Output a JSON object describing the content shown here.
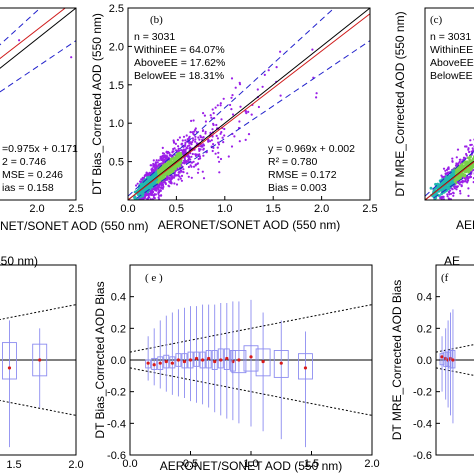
{
  "chart_data": [
    {
      "panel": "a",
      "type": "scatter",
      "xlabel": "AERONET/SONET AOD (550 nm)",
      "x_tick_labels": [
        "2.0",
        "2.5"
      ],
      "stats": [
        "=0.975x + 0.171",
        "2 = 0.746",
        "MSE = 0.246",
        "ias = 0.158"
      ],
      "xlim": [
        0,
        2.5
      ],
      "ylim": [
        0,
        2.5
      ]
    },
    {
      "panel": "b",
      "type": "scatter",
      "panel_label": "(b)",
      "ylabel": "DT Bias_Corrected  AOD (550 nm)",
      "xlabel": "AERONET/SONET  AOD (550 nm)",
      "x_tick_labels": [
        "0.0",
        "0.5",
        "1.0",
        "1.5",
        "2.0",
        "2.5"
      ],
      "y_tick_labels": [
        "0.5",
        "1.0",
        "1.5",
        "2.0",
        "2.5"
      ],
      "info": [
        "n = 3031",
        "WithinEE = 64.07%",
        "AboveEE = 17.62%",
        "BelowEE = 18.31%"
      ],
      "stats": [
        "y = 0.969x + 0.002",
        "R² = 0.780",
        "RMSE = 0.172",
        "Bias = 0.003"
      ],
      "fit": {
        "slope": 0.969,
        "intercept": 0.002
      },
      "xlim": [
        0,
        2.5
      ],
      "ylim": [
        0,
        2.5
      ],
      "colors": {
        "points": "#9b1fe8",
        "fit": "#1a1aa8",
        "ee": "#2222cc",
        "dense": "#22b8b0"
      }
    },
    {
      "panel": "c",
      "type": "scatter",
      "panel_label": "(c)",
      "ylabel": "DT MRE_Corrected AOD (550 nm)",
      "xlabel": "AER",
      "info": [
        "n = 3031",
        "WithinEE",
        "AboveEE",
        "BelowEE"
      ],
      "xlim": [
        0,
        2.5
      ],
      "ylim": [
        0,
        2.5
      ]
    },
    {
      "panel": "d",
      "type": "box",
      "xlabel": "550 nm)",
      "x_tick_labels": [
        "1.5",
        "2.0"
      ],
      "xlim": [
        0,
        2.0
      ],
      "ylim": [
        -0.6,
        0.6
      ]
    },
    {
      "panel": "e",
      "type": "box",
      "panel_label": "( e )",
      "ylabel": "DT Bias_Corrected AOD Bias",
      "xlabel": "AERONET/SONET AOD (550 nm)",
      "x_tick_labels": [
        "0.0",
        "0.5",
        "1.0",
        "1.5",
        "2.0"
      ],
      "y_tick_labels": [
        "-0.6",
        "-0.4",
        "-0.2",
        "0.0",
        "0.2",
        "0.4"
      ],
      "xlim": [
        0,
        2.0
      ],
      "ylim": [
        -0.6,
        0.6
      ],
      "ee_envelope": {
        "base": 0.05,
        "slope": 0.15
      },
      "bins_x": [
        0.15,
        0.2,
        0.25,
        0.3,
        0.35,
        0.4,
        0.45,
        0.5,
        0.55,
        0.6,
        0.65,
        0.7,
        0.75,
        0.8,
        0.85,
        0.9,
        1.0,
        1.1,
        1.25,
        1.45
      ],
      "bins_mean": [
        -0.02,
        -0.03,
        -0.02,
        -0.01,
        -0.02,
        0.0,
        -0.01,
        0.0,
        0.01,
        0.0,
        0.01,
        -0.01,
        0.0,
        0.01,
        -0.01,
        0.0,
        0.02,
        -0.01,
        -0.02,
        -0.05
      ],
      "bins_q1": [
        -0.05,
        -0.06,
        -0.06,
        -0.05,
        -0.05,
        -0.04,
        -0.05,
        -0.05,
        -0.04,
        -0.05,
        -0.05,
        -0.06,
        -0.05,
        -0.06,
        -0.07,
        -0.08,
        -0.07,
        -0.1,
        -0.11,
        -0.12
      ],
      "bins_q3": [
        0.0,
        0.01,
        0.02,
        0.03,
        0.02,
        0.04,
        0.04,
        0.05,
        0.05,
        0.05,
        0.06,
        0.06,
        0.07,
        0.07,
        0.06,
        0.06,
        0.09,
        0.07,
        0.06,
        0.04
      ],
      "bins_min": [
        -0.13,
        -0.16,
        -0.18,
        -0.2,
        -0.22,
        -0.23,
        -0.24,
        -0.26,
        -0.27,
        -0.28,
        -0.3,
        -0.33,
        -0.35,
        -0.37,
        -0.38,
        -0.4,
        -0.42,
        -0.45,
        -0.5,
        -0.55
      ],
      "bins_max": [
        0.15,
        0.2,
        0.25,
        0.28,
        0.3,
        0.32,
        0.33,
        0.34,
        0.34,
        0.35,
        0.35,
        0.35,
        0.36,
        0.36,
        0.37,
        0.37,
        0.38,
        0.3,
        0.25,
        0.18
      ]
    },
    {
      "panel": "f",
      "type": "box",
      "panel_label": "(f",
      "ylabel": "DT MRE_Corrected AOD Bias",
      "xlabel": "AE",
      "y_tick_labels": [
        "-0.6",
        "-0.4",
        "-0.2",
        "0.0",
        "0.2",
        "0.4"
      ],
      "xlim": [
        0,
        2.0
      ],
      "ylim": [
        -0.6,
        0.6
      ]
    }
  ]
}
